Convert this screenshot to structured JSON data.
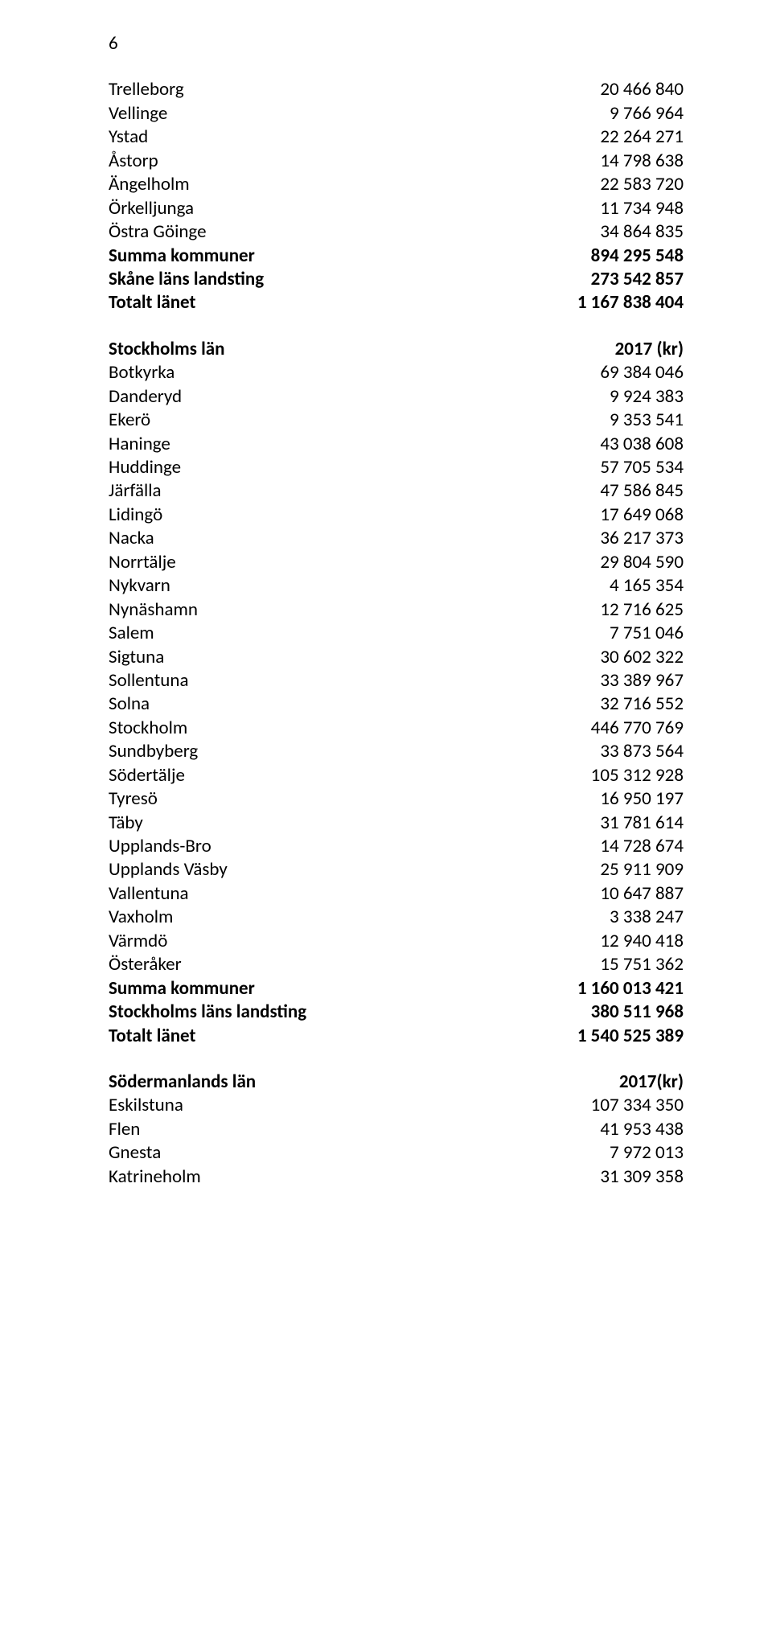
{
  "page_number": "6",
  "rows": [
    {
      "label": "Trelleborg",
      "value": "20 466 840",
      "bold": false
    },
    {
      "label": "Vellinge",
      "value": "9 766 964",
      "bold": false
    },
    {
      "label": "Ystad",
      "value": "22 264 271",
      "bold": false
    },
    {
      "label": "Åstorp",
      "value": "14 798 638",
      "bold": false
    },
    {
      "label": "Ängelholm",
      "value": "22 583 720",
      "bold": false
    },
    {
      "label": "Örkelljunga",
      "value": "11 734 948",
      "bold": false
    },
    {
      "label": "Östra Göinge",
      "value": "34 864 835",
      "bold": false
    },
    {
      "label": "Summa kommuner",
      "value": "894 295 548",
      "bold": true
    },
    {
      "label": "Skåne läns landsting",
      "value": "273 542 857",
      "bold": true
    },
    {
      "label": "Totalt länet",
      "value": "1 167 838 404",
      "bold": true
    },
    {
      "spacer": true
    },
    {
      "label": "Stockholms län",
      "value": "2017 (kr)",
      "bold": true
    },
    {
      "label": "Botkyrka",
      "value": "69 384 046",
      "bold": false
    },
    {
      "label": "Danderyd",
      "value": "9 924 383",
      "bold": false
    },
    {
      "label": "Ekerö",
      "value": "9 353 541",
      "bold": false
    },
    {
      "label": "Haninge",
      "value": "43 038 608",
      "bold": false
    },
    {
      "label": "Huddinge",
      "value": "57 705 534",
      "bold": false
    },
    {
      "label": "Järfälla",
      "value": "47 586 845",
      "bold": false
    },
    {
      "label": "Lidingö",
      "value": "17 649 068",
      "bold": false
    },
    {
      "label": "Nacka",
      "value": "36 217 373",
      "bold": false
    },
    {
      "label": "Norrtälje",
      "value": "29 804 590",
      "bold": false
    },
    {
      "label": "Nykvarn",
      "value": "4 165 354",
      "bold": false
    },
    {
      "label": "Nynäshamn",
      "value": "12 716 625",
      "bold": false
    },
    {
      "label": "Salem",
      "value": "7 751 046",
      "bold": false
    },
    {
      "label": "Sigtuna",
      "value": "30 602 322",
      "bold": false
    },
    {
      "label": "Sollentuna",
      "value": "33 389 967",
      "bold": false
    },
    {
      "label": "Solna",
      "value": "32 716 552",
      "bold": false
    },
    {
      "label": "Stockholm",
      "value": "446 770 769",
      "bold": false
    },
    {
      "label": "Sundbyberg",
      "value": "33 873 564",
      "bold": false
    },
    {
      "label": "Södertälje",
      "value": "105 312 928",
      "bold": false
    },
    {
      "label": "Tyresö",
      "value": "16 950 197",
      "bold": false
    },
    {
      "label": "Täby",
      "value": "31 781 614",
      "bold": false
    },
    {
      "label": "Upplands-Bro",
      "value": "14 728 674",
      "bold": false
    },
    {
      "label": "Upplands Väsby",
      "value": "25 911 909",
      "bold": false
    },
    {
      "label": "Vallentuna",
      "value": "10 647 887",
      "bold": false
    },
    {
      "label": "Vaxholm",
      "value": "3 338 247",
      "bold": false
    },
    {
      "label": "Värmdö",
      "value": "12 940 418",
      "bold": false
    },
    {
      "label": "Österåker",
      "value": "15 751 362",
      "bold": false
    },
    {
      "label": "Summa kommuner",
      "value": "1 160 013 421",
      "bold": true
    },
    {
      "label": "Stockholms läns landsting",
      "value": "380 511 968",
      "bold": true
    },
    {
      "label": "Totalt länet",
      "value": "1 540 525 389",
      "bold": true
    },
    {
      "spacer": true
    },
    {
      "label": "Södermanlands län",
      "value": "2017(kr)",
      "bold": true
    },
    {
      "label": "Eskilstuna",
      "value": "107 334 350",
      "bold": false
    },
    {
      "label": "Flen",
      "value": "41 953 438",
      "bold": false
    },
    {
      "label": "Gnesta",
      "value": "7 972 013",
      "bold": false
    },
    {
      "label": "Katrineholm",
      "value": "31 309 358",
      "bold": false
    }
  ]
}
